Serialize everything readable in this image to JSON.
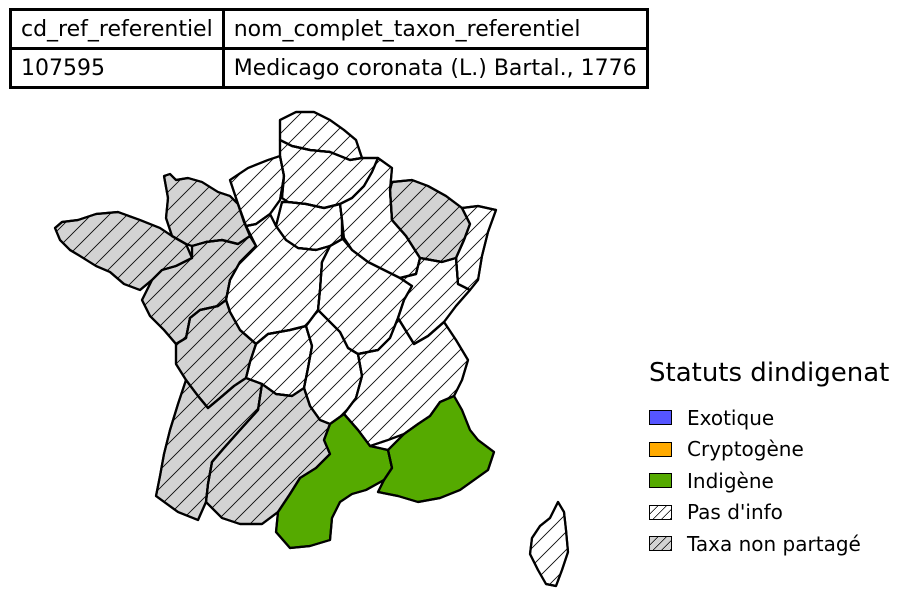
{
  "table": {
    "headers": [
      "cd_ref_referentiel",
      "nom_complet_taxon_referentiel"
    ],
    "row": [
      "107595",
      "Medicago coronata (L.) Bartal., 1776"
    ]
  },
  "legend": {
    "title": "Statuts dindigenat",
    "items": [
      {
        "label": "Exotique",
        "color": "#5555ff",
        "pattern": "solid"
      },
      {
        "label": "Cryptogène",
        "color": "#ffaa00",
        "pattern": "solid"
      },
      {
        "label": "Indigène",
        "color": "#55aa00",
        "pattern": "solid"
      },
      {
        "label": "Pas d'info",
        "color": "#ffffff",
        "pattern": "hatch"
      },
      {
        "label": "Taxa non partagé",
        "color": "#d3d3d3",
        "pattern": "hatch"
      }
    ]
  },
  "map": {
    "regions": [
      {
        "name": "Bretagne",
        "status": "Taxa non partagé"
      },
      {
        "name": "Basse-Normandie",
        "status": "Taxa non partagé"
      },
      {
        "name": "Haute-Normandie",
        "status": "Pas d'info"
      },
      {
        "name": "Nord-Pas-de-Calais",
        "status": "Pas d'info"
      },
      {
        "name": "Picardie",
        "status": "Pas d'info"
      },
      {
        "name": "Île-de-France",
        "status": "Pas d'info"
      },
      {
        "name": "Champagne-Ardenne",
        "status": "Pas d'info"
      },
      {
        "name": "Lorraine",
        "status": "Taxa non partagé"
      },
      {
        "name": "Alsace",
        "status": "Pas d'info"
      },
      {
        "name": "Pays de la Loire",
        "status": "Taxa non partagé"
      },
      {
        "name": "Centre",
        "status": "Pas d'info"
      },
      {
        "name": "Bourgogne",
        "status": "Pas d'info"
      },
      {
        "name": "Franche-Comté",
        "status": "Pas d'info"
      },
      {
        "name": "Poitou-Charentes",
        "status": "Taxa non partagé"
      },
      {
        "name": "Limousin",
        "status": "Pas d'info"
      },
      {
        "name": "Auvergne",
        "status": "Pas d'info"
      },
      {
        "name": "Rhône-Alpes",
        "status": "Pas d'info"
      },
      {
        "name": "Aquitaine",
        "status": "Taxa non partagé"
      },
      {
        "name": "Midi-Pyrénées",
        "status": "Taxa non partagé"
      },
      {
        "name": "Languedoc-Roussillon",
        "status": "Indigène"
      },
      {
        "name": "Provence-Alpes-Côte d'Azur",
        "status": "Indigène"
      },
      {
        "name": "Corse",
        "status": "Pas d'info"
      }
    ]
  }
}
